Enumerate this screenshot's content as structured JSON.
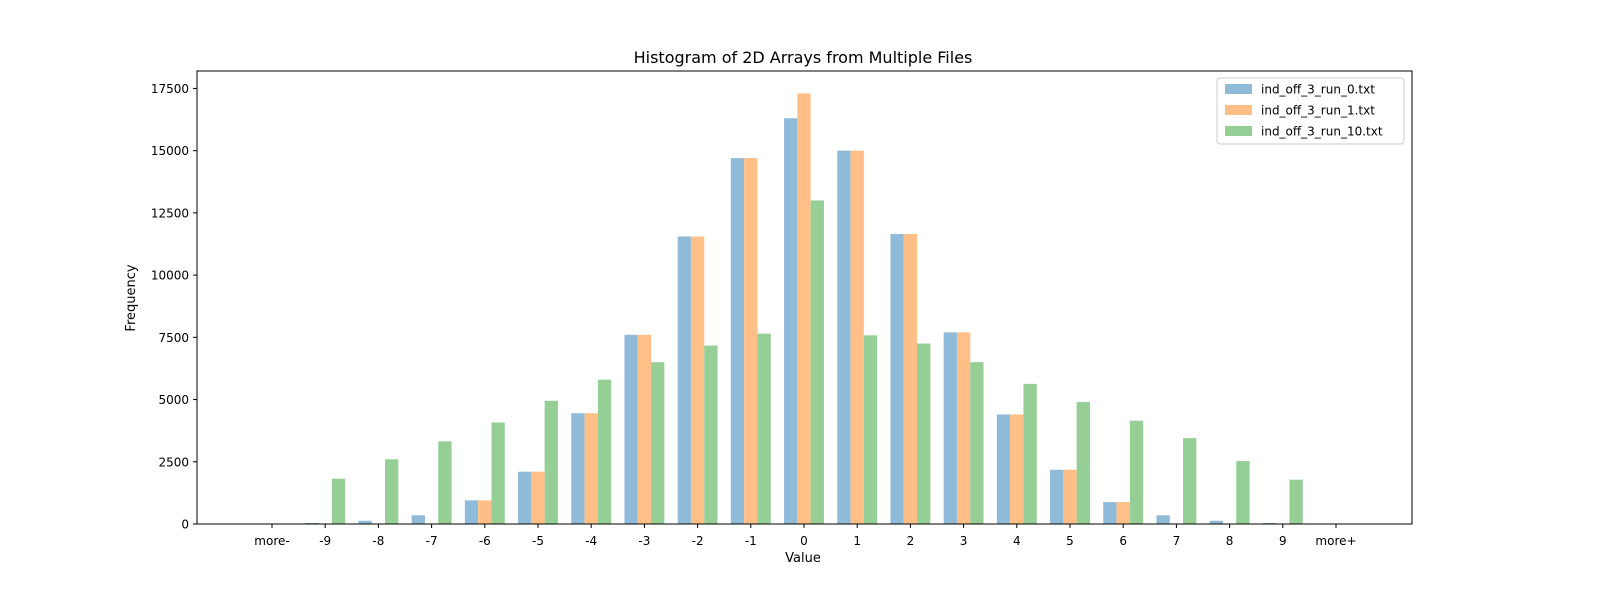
{
  "chart_data": {
    "type": "bar",
    "title": "Histogram of 2D Arrays from Multiple Files",
    "xlabel": "Value",
    "ylabel": "Frequency",
    "categories": [
      "more-",
      "-9",
      "-8",
      "-7",
      "-6",
      "-5",
      "-4",
      "-3",
      "-2",
      "-1",
      "0",
      "1",
      "2",
      "3",
      "4",
      "5",
      "6",
      "7",
      "8",
      "9",
      "more+"
    ],
    "ylim": [
      0,
      18200
    ],
    "yticks": [
      0,
      2500,
      5000,
      7500,
      10000,
      12500,
      15000,
      17500
    ],
    "ytick_labels": [
      "0",
      "2500",
      "5000",
      "7500",
      "10000",
      "12500",
      "15000",
      "17500"
    ],
    "grid": false,
    "legend_position": "top-right",
    "series": [
      {
        "name": "ind_off_3_run_0.txt",
        "color": "#8fbbd9",
        "values": [
          0,
          40,
          130,
          350,
          950,
          2100,
          4450,
          7600,
          11550,
          14700,
          16300,
          15000,
          11650,
          7700,
          4400,
          2180,
          880,
          350,
          130,
          40,
          0
        ]
      },
      {
        "name": "ind_off_3_run_1.txt",
        "color": "#ffbf86",
        "values": [
          0,
          0,
          0,
          0,
          950,
          2100,
          4450,
          7600,
          11550,
          14700,
          17300,
          15000,
          11650,
          7700,
          4400,
          2180,
          880,
          0,
          0,
          0,
          0
        ]
      },
      {
        "name": "ind_off_3_run_10.txt",
        "color": "#96cf96",
        "values": [
          0,
          1820,
          2600,
          3320,
          4080,
          4950,
          5800,
          6500,
          7170,
          7650,
          13000,
          7580,
          7250,
          6500,
          5630,
          4900,
          4150,
          3450,
          2530,
          1780,
          0
        ]
      }
    ]
  }
}
